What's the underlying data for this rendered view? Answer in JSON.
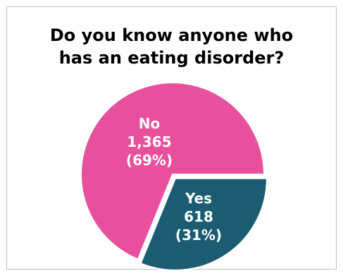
{
  "chart_data": {
    "type": "pie",
    "title_lines": [
      "Do you know anyone who",
      "has an eating disorder?"
    ],
    "slices": [
      {
        "name": "No",
        "value": 1365,
        "value_label": "1,365",
        "percent_label": "(69%)",
        "color": "#e8509d"
      },
      {
        "name": "Yes",
        "value": 618,
        "value_label": "618",
        "percent_label": "(31%)",
        "color": "#1b5c72"
      }
    ],
    "legend": "none"
  }
}
